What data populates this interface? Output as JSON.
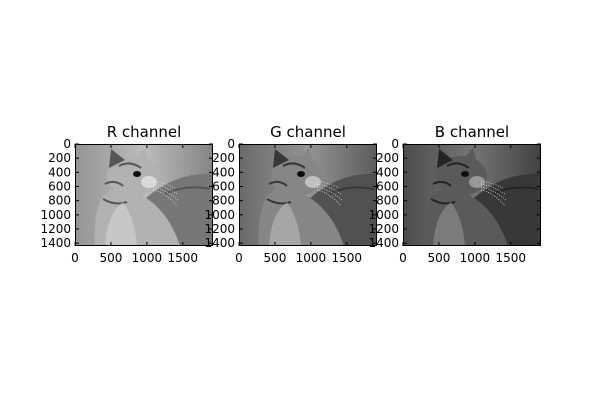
{
  "chart_data": [
    {
      "type": "image",
      "title": "R channel",
      "image_content": "grayscale photo of a tabby cat looking up and to the right, red channel",
      "tone": "bright",
      "xlim": [
        0,
        1920
      ],
      "ylim": [
        1440,
        0
      ],
      "xticks": [
        0,
        500,
        1000,
        1500
      ],
      "xtick_labels": [
        "0",
        "500",
        "1000",
        "1500"
      ],
      "yticks": [
        0,
        200,
        400,
        600,
        800,
        1000,
        1200,
        1400
      ],
      "ytick_labels": [
        "0",
        "200",
        "400",
        "600",
        "800",
        "1000",
        "1200",
        "1400"
      ]
    },
    {
      "type": "image",
      "title": "G channel",
      "image_content": "grayscale photo of a tabby cat looking up and to the right, green channel",
      "tone": "medium",
      "xlim": [
        0,
        1920
      ],
      "ylim": [
        1440,
        0
      ],
      "xticks": [
        0,
        500,
        1000,
        1500
      ],
      "xtick_labels": [
        "0",
        "500",
        "1000",
        "1500"
      ],
      "yticks": [
        0,
        200,
        400,
        600,
        800,
        1000,
        1200,
        1400
      ],
      "ytick_labels": [
        "0",
        "200",
        "400",
        "600",
        "800",
        "1000",
        "1200",
        "1400"
      ]
    },
    {
      "type": "image",
      "title": "B channel",
      "image_content": "grayscale photo of a tabby cat looking up and to the right, blue channel",
      "tone": "dark",
      "xlim": [
        0,
        1920
      ],
      "ylim": [
        1440,
        0
      ],
      "xticks": [
        0,
        500,
        1000,
        1500
      ],
      "xtick_labels": [
        "0",
        "500",
        "1000",
        "1500"
      ],
      "yticks": [
        0,
        200,
        400,
        600,
        800,
        1000,
        1200,
        1400
      ],
      "ytick_labels": [
        "0",
        "200",
        "400",
        "600",
        "800",
        "1000",
        "1200",
        "1400"
      ]
    }
  ]
}
